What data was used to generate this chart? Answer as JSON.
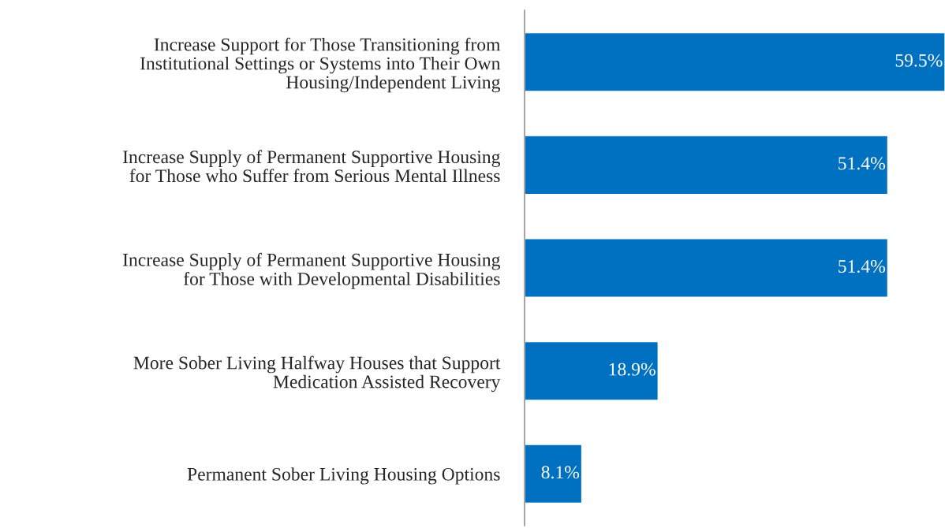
{
  "chart_data": {
    "type": "bar",
    "orientation": "horizontal",
    "categories": [
      "Increase Support for Those Transitioning from\nInstitutional Settings or Systems into Their Own\nHousing/Independent Living",
      "Increase Supply of Permanent Supportive Housing\nfor Those who Suffer from Serious Mental Illness",
      "Increase Supply of Permanent Supportive Housing\nfor Those with Developmental Disabilities",
      "More Sober Living Halfway Houses that Support\nMedication Assisted Recovery",
      "Permanent Sober Living Housing Options"
    ],
    "values": [
      59.5,
      51.4,
      51.4,
      18.9,
      8.1
    ],
    "value_labels": [
      "59.5%",
      "51.4%",
      "51.4%",
      "18.9%",
      "8.1%"
    ],
    "color": "#0070c0",
    "grid": false
  }
}
